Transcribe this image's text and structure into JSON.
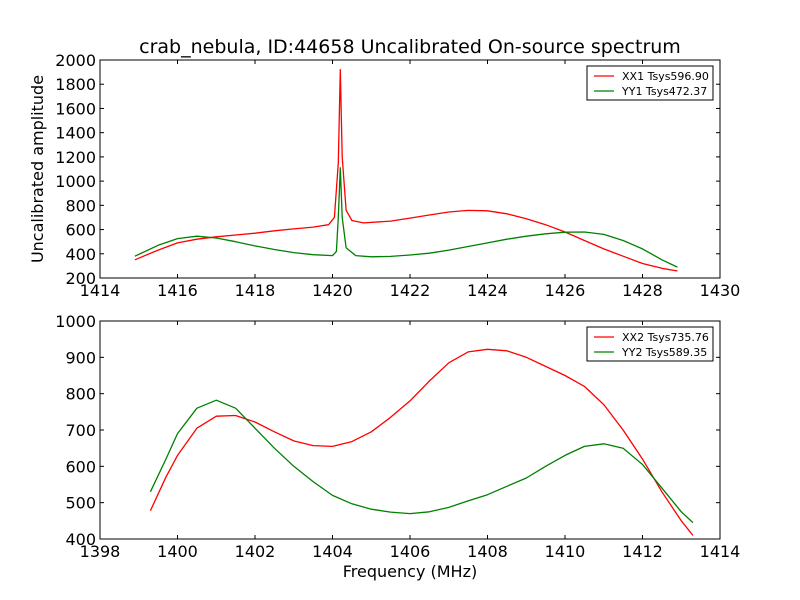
{
  "figure": {
    "title": "crab_nebula, ID:44658 Uncalibrated On-source spectrum",
    "xlabel": "Frequency (MHz)",
    "background": "#ffffff"
  },
  "chart_data": [
    {
      "type": "line",
      "ylabel": "Uncalibrated amplitude",
      "xlabel": "",
      "xlim": [
        1414,
        1430
      ],
      "ylim": [
        200,
        2000
      ],
      "xticks": [
        1414,
        1416,
        1418,
        1420,
        1422,
        1424,
        1426,
        1428,
        1430
      ],
      "yticks": [
        200,
        400,
        600,
        800,
        1000,
        1200,
        1400,
        1600,
        1800,
        2000
      ],
      "grid": false,
      "legend_position": "top-right",
      "series": [
        {
          "name": "XX1 Tsys596.90",
          "color": "#ff0000",
          "x": [
            1414.9,
            1415.5,
            1416.0,
            1416.5,
            1417.0,
            1417.5,
            1418.0,
            1418.5,
            1419.0,
            1419.5,
            1419.9,
            1420.05,
            1420.15,
            1420.2,
            1420.25,
            1420.35,
            1420.5,
            1420.8,
            1421.5,
            1422.0,
            1422.5,
            1423.0,
            1423.5,
            1424.0,
            1424.5,
            1425.0,
            1425.5,
            1426.0,
            1426.5,
            1427.0,
            1427.5,
            1428.0,
            1428.5,
            1428.9
          ],
          "values": [
            350,
            430,
            490,
            520,
            540,
            555,
            570,
            590,
            605,
            620,
            640,
            700,
            1150,
            1920,
            1200,
            760,
            675,
            655,
            670,
            695,
            720,
            745,
            758,
            755,
            730,
            690,
            640,
            580,
            510,
            440,
            380,
            320,
            280,
            258
          ]
        },
        {
          "name": "YY1 Tsys472.37",
          "color": "#008000",
          "x": [
            1414.9,
            1415.5,
            1416.0,
            1416.5,
            1417.0,
            1417.5,
            1418.0,
            1418.5,
            1419.0,
            1419.5,
            1420.0,
            1420.1,
            1420.15,
            1420.2,
            1420.25,
            1420.35,
            1420.6,
            1421.0,
            1421.5,
            1422.0,
            1422.5,
            1423.0,
            1423.5,
            1424.0,
            1424.5,
            1425.0,
            1425.5,
            1426.0,
            1426.5,
            1427.0,
            1427.5,
            1428.0,
            1428.5,
            1428.9
          ],
          "values": [
            380,
            470,
            525,
            545,
            530,
            500,
            465,
            435,
            410,
            392,
            385,
            420,
            700,
            1110,
            700,
            450,
            385,
            375,
            378,
            390,
            405,
            430,
            460,
            490,
            520,
            545,
            565,
            578,
            580,
            560,
            510,
            440,
            350,
            290
          ]
        }
      ]
    },
    {
      "type": "line",
      "ylabel": "",
      "xlabel": "Frequency (MHz)",
      "xlim": [
        1398,
        1414
      ],
      "ylim": [
        400,
        1000
      ],
      "xticks": [
        1398,
        1400,
        1402,
        1404,
        1406,
        1408,
        1410,
        1412,
        1414
      ],
      "yticks": [
        400,
        500,
        600,
        700,
        800,
        900,
        1000
      ],
      "grid": false,
      "legend_position": "top-right",
      "series": [
        {
          "name": "XX2 Tsys735.76",
          "color": "#ff0000",
          "x": [
            1399.3,
            1399.7,
            1400.0,
            1400.5,
            1401.0,
            1401.5,
            1402.0,
            1402.5,
            1403.0,
            1403.5,
            1404.0,
            1404.5,
            1405.0,
            1405.5,
            1406.0,
            1406.5,
            1407.0,
            1407.5,
            1408.0,
            1408.5,
            1409.0,
            1409.5,
            1410.0,
            1410.5,
            1411.0,
            1411.5,
            1412.0,
            1412.5,
            1413.0,
            1413.3
          ],
          "values": [
            478,
            570,
            630,
            705,
            738,
            740,
            722,
            695,
            670,
            657,
            655,
            668,
            695,
            735,
            780,
            835,
            885,
            915,
            922,
            918,
            900,
            875,
            850,
            820,
            770,
            700,
            620,
            530,
            450,
            410
          ]
        },
        {
          "name": "YY2 Tsys589.35",
          "color": "#008000",
          "x": [
            1399.3,
            1399.7,
            1400.0,
            1400.5,
            1401.0,
            1401.5,
            1402.0,
            1402.5,
            1403.0,
            1403.5,
            1404.0,
            1404.5,
            1405.0,
            1405.5,
            1406.0,
            1406.5,
            1407.0,
            1407.5,
            1408.0,
            1408.5,
            1409.0,
            1409.5,
            1410.0,
            1410.5,
            1411.0,
            1411.5,
            1412.0,
            1412.5,
            1413.0,
            1413.3
          ],
          "values": [
            530,
            620,
            690,
            760,
            782,
            760,
            705,
            650,
            600,
            558,
            520,
            497,
            482,
            474,
            470,
            475,
            487,
            505,
            522,
            545,
            568,
            600,
            630,
            655,
            662,
            650,
            605,
            540,
            475,
            445
          ]
        }
      ]
    }
  ]
}
